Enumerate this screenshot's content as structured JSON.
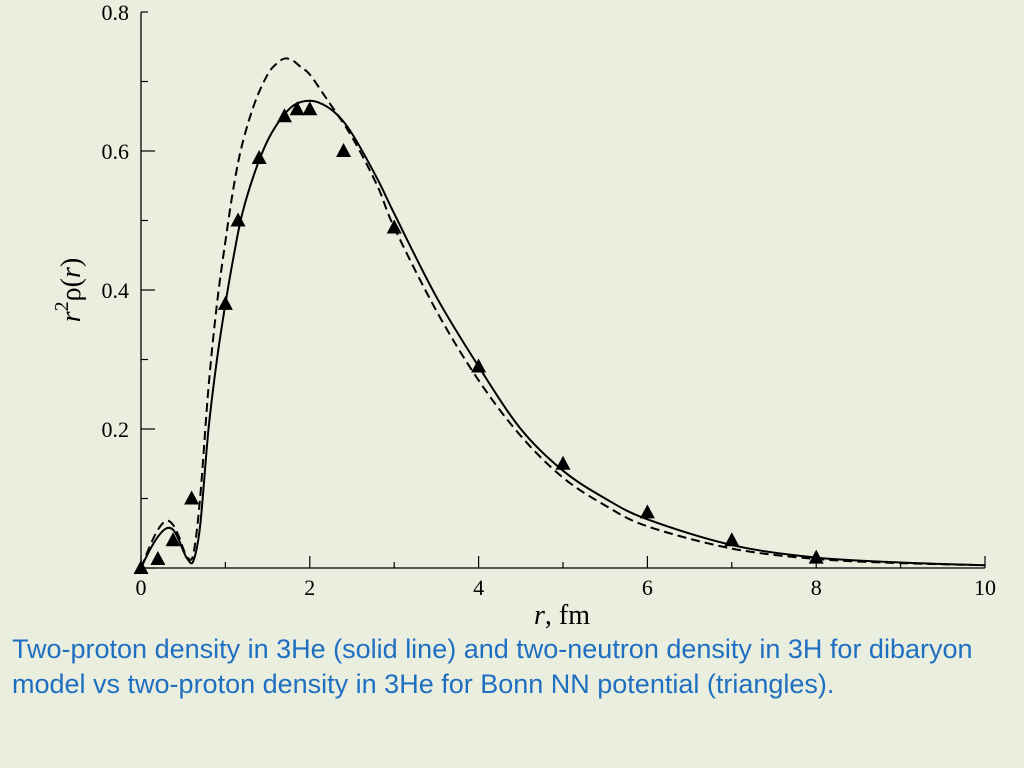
{
  "chart_data": {
    "type": "line",
    "xlabel": {
      "italic": "r",
      "rest": ", fm"
    },
    "ylabel": {
      "part1": "r",
      "sup": "2",
      "part2": "ρ(",
      "part3": "r",
      "part4": ")"
    },
    "xlim": [
      0,
      10
    ],
    "ylim": [
      0,
      0.8
    ],
    "xticks": [
      "0",
      "2",
      "4",
      "6",
      "8",
      "10"
    ],
    "xtick_values": [
      0,
      2,
      4,
      6,
      8,
      10
    ],
    "yticks": [
      "0.2",
      "0.4",
      "0.6",
      "0.8"
    ],
    "ytick_values": [
      0.2,
      0.4,
      0.6,
      0.8
    ],
    "grid": false,
    "series": [
      {
        "style": "solid",
        "x": [
          0,
          0.1,
          0.2,
          0.3,
          0.38,
          0.45,
          0.5,
          0.55,
          0.62,
          0.7,
          0.8,
          0.9,
          1.0,
          1.1,
          1.2,
          1.35,
          1.5,
          1.65,
          1.8,
          1.95,
          2.1,
          2.3,
          2.5,
          2.8,
          3.0,
          3.5,
          4.0,
          4.5,
          5.0,
          5.5,
          6.0,
          7.0,
          8.0,
          9.0,
          10.0
        ],
        "y": [
          0.0,
          0.025,
          0.045,
          0.057,
          0.055,
          0.04,
          0.025,
          0.013,
          0.01,
          0.06,
          0.2,
          0.3,
          0.38,
          0.45,
          0.51,
          0.57,
          0.615,
          0.645,
          0.665,
          0.672,
          0.67,
          0.655,
          0.625,
          0.56,
          0.51,
          0.39,
          0.29,
          0.2,
          0.14,
          0.1,
          0.07,
          0.033,
          0.015,
          0.008,
          0.004
        ]
      },
      {
        "style": "dashed",
        "x": [
          0,
          0.1,
          0.2,
          0.3,
          0.38,
          0.45,
          0.5,
          0.55,
          0.62,
          0.7,
          0.8,
          0.9,
          1.0,
          1.1,
          1.2,
          1.35,
          1.5,
          1.6,
          1.7,
          1.8,
          1.9,
          2.0,
          2.2,
          2.5,
          2.8,
          3.0,
          3.5,
          4.0,
          4.5,
          5.0,
          5.5,
          6.0,
          7.0,
          8.0,
          9.0,
          10.0
        ],
        "y": [
          0.0,
          0.03,
          0.055,
          0.068,
          0.062,
          0.045,
          0.028,
          0.015,
          0.02,
          0.1,
          0.26,
          0.38,
          0.47,
          0.55,
          0.61,
          0.67,
          0.71,
          0.725,
          0.733,
          0.73,
          0.72,
          0.71,
          0.675,
          0.62,
          0.55,
          0.49,
          0.37,
          0.27,
          0.19,
          0.13,
          0.09,
          0.06,
          0.028,
          0.013,
          0.007,
          0.004
        ]
      },
      {
        "style": "triangles",
        "x": [
          0,
          0.2,
          0.38,
          0.6,
          1.0,
          1.15,
          1.4,
          1.7,
          1.85,
          2.0,
          2.4,
          3.0,
          4.0,
          5.0,
          6.0,
          7.0,
          8.0
        ],
        "y": [
          0.0,
          0.013,
          0.04,
          0.1,
          0.38,
          0.5,
          0.59,
          0.65,
          0.66,
          0.66,
          0.6,
          0.49,
          0.29,
          0.15,
          0.08,
          0.04,
          0.015
        ]
      }
    ]
  },
  "caption": "Two-proton density in 3He (solid line) and two-neutron density in 3H for dibaryon model vs  two-proton density in 3He  for Bonn NN potential (triangles).",
  "colors": {
    "background": "#eaeede",
    "caption": "#1f6fc1",
    "plot": "#000000"
  }
}
